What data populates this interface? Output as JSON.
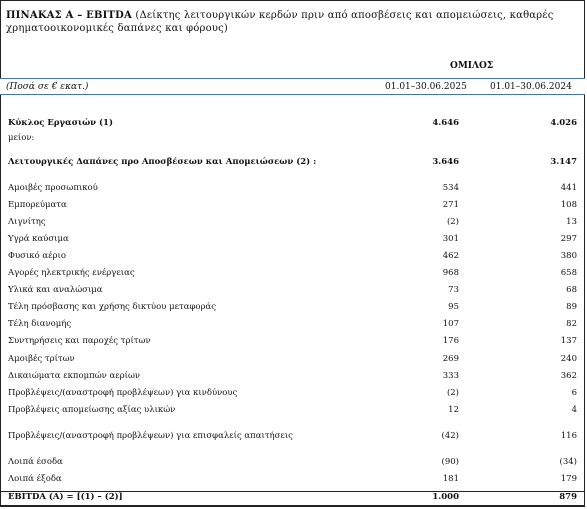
{
  "title_bold": "ΠΙΝΑΚΑΣ Α – EBITDA",
  "title_rest": " (Δείκτης λειτουργικών κερδών πριν από αποσβέσεις και απομειώσεις, καθαρές χρηματοοικονομικές δαπάνες και φόρους)",
  "group_label": "ΟΜΙΛΟΣ",
  "header": {
    "units_label": "(Ποσά σε € εκατ.)",
    "col1": "01.01–30.06.2025",
    "col2": "01.01–30.06.2024"
  },
  "rows": [
    {
      "label": "Κύκλος Εργασιών (1)",
      "v1": "4.646",
      "v2": "4.026",
      "bold": true
    },
    {
      "label": "μείον:",
      "v1": "",
      "v2": ""
    },
    {
      "label": "Λειτουργικές Δαπάνες προ Αποσβέσεων και Απομειώσεων (2) :",
      "v1": "3.646",
      "v2": "3.147",
      "bold": true
    },
    {
      "label": "Αμοιβές προσωπικού",
      "v1": "534",
      "v2": "441"
    },
    {
      "label": "Εμπορεύματα",
      "v1": "271",
      "v2": "108"
    },
    {
      "label": "Λιγνίτης",
      "v1": "(2)",
      "v2": "13"
    },
    {
      "label": "Υγρά καύσιμα",
      "v1": "301",
      "v2": "297"
    },
    {
      "label": "Φυσικό αέριο",
      "v1": "462",
      "v2": "380"
    },
    {
      "label": "Αγορές ηλεκτρικής ενέργειας",
      "v1": "968",
      "v2": "658"
    },
    {
      "label": "Υλικά και αναλώσιμα",
      "v1": "73",
      "v2": "68"
    },
    {
      "label": "Τέλη πρόσβασης και χρήσης δικτύου μεταφοράς",
      "v1": "95",
      "v2": "89"
    },
    {
      "label": "Τέλη διανομής",
      "v1": "107",
      "v2": "82"
    },
    {
      "label": "Συντηρήσεις και παροχές τρίτων",
      "v1": "176",
      "v2": "137"
    },
    {
      "label": "Αμοιβές τρίτων",
      "v1": "269",
      "v2": "240"
    },
    {
      "label": "Δικαιώματα εκπομπών αερίων",
      "v1": "333",
      "v2": "362"
    },
    {
      "label": "Προβλέψεις/(αναστροφή προβλέψεων) για κινδύνους",
      "v1": "(2)",
      "v2": "6"
    },
    {
      "label": "Προβλέψεις απομείωσης αξίας υλικών",
      "v1": "12",
      "v2": "4"
    },
    {
      "label": "Προβλέψεις/(αναστροφή προβλέψεων) για επισφαλείς απαιτήσεις",
      "v1": "(42)",
      "v2": "116"
    },
    {
      "label": "Λοιπά έσοδα",
      "v1": "(90)",
      "v2": "(34)"
    },
    {
      "label": "Λοιπά έξοδα",
      "v1": "181",
      "v2": "179"
    },
    {
      "label": "EBITDA (A) = [(1) – (2)]",
      "v1": "1.000",
      "v2": "879",
      "bold": true,
      "total": true
    }
  ]
}
